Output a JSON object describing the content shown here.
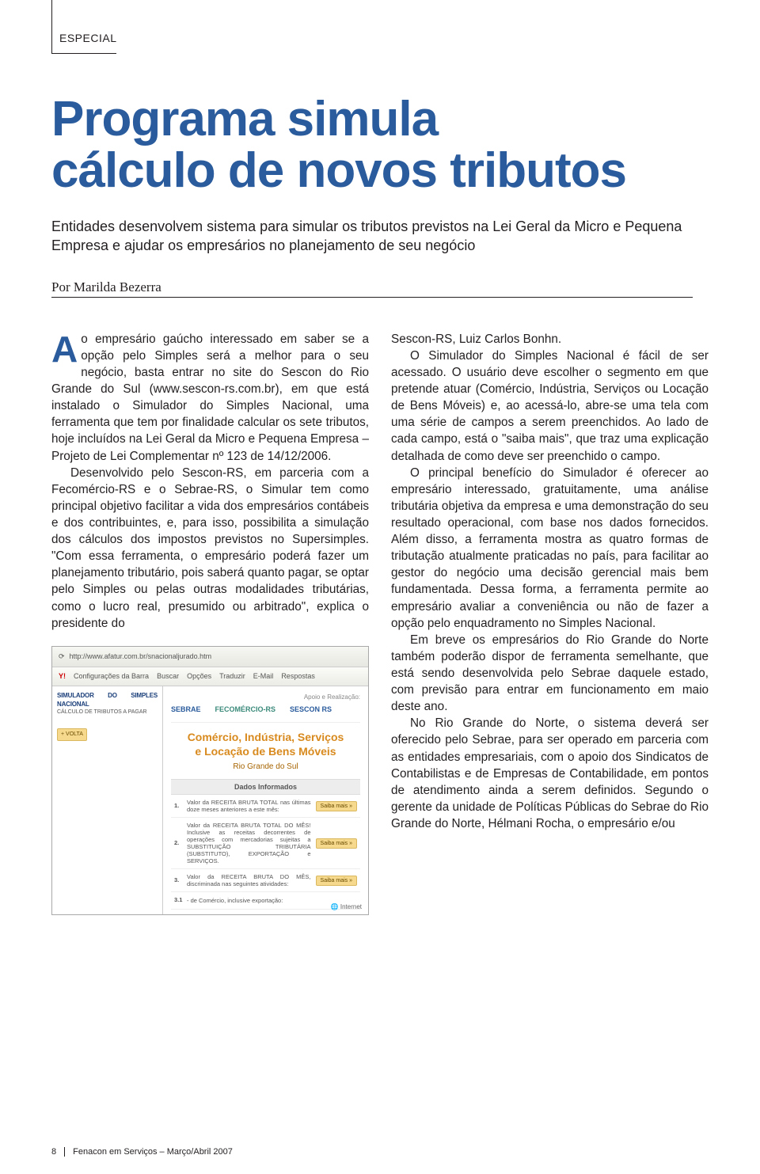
{
  "colors": {
    "brand_blue": "#2a5b9c",
    "text": "#231f20",
    "orange": "#d88a1e",
    "screenshot_bg": "#f4f4f0",
    "button_bg": "#f6d98c",
    "button_border": "#d9b860"
  },
  "section_label": "ESPECIAL",
  "headline_line1": "Programa simula",
  "headline_line2": "cálculo de novos tributos",
  "subhead": "Entidades desenvolvem sistema para simular os tributos previstos na Lei Geral da Micro e Pequena Empresa e ajudar os empresários no planejamento de seu negócio",
  "byline": "Por Marilda Bezerra",
  "dropcap": "A",
  "col1_p1_after_cap": "o empresário gaúcho interessado em saber se a opção pelo Simples será a melhor para o seu negócio, basta entrar no site do Sescon do Rio Grande do Sul (www.sescon-rs.com.br), em que está instalado o Simulador do Simples Nacional, uma ferramenta que tem por finalidade calcular os sete tributos, hoje incluídos na Lei Geral da Micro e Pequena Empresa – Projeto de Lei Complementar nº 123 de 14/12/2006.",
  "col1_p2": "Desenvolvido pelo Sescon-RS, em parceria com a Fecomércio-RS e o Sebrae-RS, o Simular tem como principal objetivo facilitar a vida dos empresários contábeis e dos contribuintes, e, para isso, possibilita a simulação dos cálculos dos impostos previstos no Supersimples. \"Com essa ferramenta, o empresário poderá fazer um planejamento tributário, pois saberá quanto pagar, se optar pelo Simples ou pelas outras modalidades tributárias, como o lucro real, presumido ou arbitrado\", explica o presidente do",
  "col2_p1": "Sescon-RS, Luiz Carlos Bonhn.",
  "col2_p2": "O Simulador do Simples Nacional é fácil de ser acessado. O usuário deve escolher o segmento em que pretende atuar (Comércio, Indústria, Serviços ou Locação de Bens Móveis) e, ao acessá-lo, abre-se uma tela com uma série de campos a serem preenchidos. Ao lado de cada campo, está o \"saiba mais\", que traz uma explicação detalhada de como deve ser preenchido o campo.",
  "col2_p3": "O principal benefício do Simulador é oferecer ao empresário interessado, gratuitamente, uma análise tributária objetiva da empresa e uma demonstração do seu resultado operacional, com base nos dados fornecidos. Além disso, a ferramenta mostra as quatro formas de tributação atualmente praticadas no país, para facilitar ao gestor do negócio uma decisão gerencial mais bem fundamentada. Dessa forma, a ferramenta permite ao empresário avaliar a conveniência ou não de fazer a opção pelo enquadramento no Simples Nacional.",
  "col2_p4": "Em breve os empresários do Rio Grande do Norte também poderão dispor de ferramenta semelhante, que está sendo desenvolvida pelo Sebrae daquele estado, com previsão para entrar em funcionamento em maio deste ano.",
  "col2_p5": "No Rio Grande do Norte, o sistema deverá ser oferecido pelo Sebrae, para ser operado em parceria com as entidades empresariais, com o apoio dos Sindicatos de Contabilistas e de Empresas de Contabilidade, em pontos de atendimento ainda a serem definidos. Segundo o gerente da unidade de Políticas Públicas do Sebrae do Rio Grande do Norte, Hélmani Rocha, o empresário e/ou",
  "screenshot": {
    "url": "http://www.afatur.com.br/snacionaljurado.htm",
    "toolbar_items": [
      "Configurações da Barra",
      "Buscar",
      "Opções",
      "Traduzir",
      "E-Mail",
      "Respostas"
    ],
    "side_title": "SIMULADOR DO SIMPLES NACIONAL",
    "side_sub": "CÁLCULO DE TRIBUTOS A PAGAR",
    "side_btn": "+ VOLTA",
    "apoio_label": "Apoio e Realização:",
    "logos": [
      "SEBRAE",
      "FECOMÉRCIO-RS",
      "SESCON RS"
    ],
    "hero_l1": "Comércio, Indústria, Serviços",
    "hero_l2": "e Locação de Bens Móveis",
    "hero_sub": "Rio Grande do Sul",
    "dados_header": "Dados Informados",
    "rows": [
      {
        "n": "1.",
        "txt": "Valor da RECEITA BRUTA TOTAL nas últimas doze meses anteriores a este mês:",
        "btn": "Saiba mais »"
      },
      {
        "n": "2.",
        "txt": "Valor da RECEITA BRUTA TOTAL DO MÊS! Inclusive as receitas decorrentes de operações com mercadorias sujeitas a SUBSTITUIÇÃO TRIBUTÁRIA (SUBSTITUTO), EXPORTAÇÃO e SERVIÇOS.",
        "btn": "Saiba mais »"
      },
      {
        "n": "3.",
        "txt": "Valor da RECEITA BRUTA DO MÊS, discriminada nas seguintes atividades:",
        "btn": "Saiba mais »"
      },
      {
        "n": "3.1",
        "txt": "- de Comércio, inclusive exportação:",
        "btn": ""
      }
    ],
    "footer_brand": "Internet"
  },
  "footer": {
    "page": "8",
    "pub": "Fenacon em Serviços – Março/Abril 2007"
  }
}
